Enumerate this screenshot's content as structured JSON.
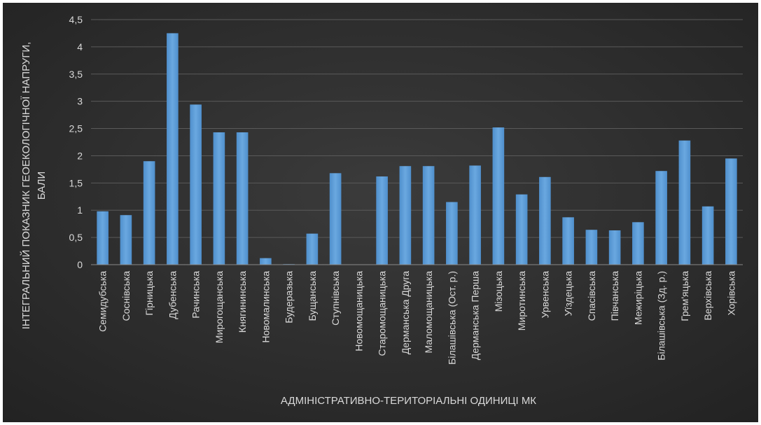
{
  "chart_data": {
    "type": "bar",
    "categories": [
      "Семидубська",
      "Соснівська",
      "Гірницька",
      "Дубенська",
      "Рачинська",
      "Мирогощанська",
      "Княгининська",
      "Новомалинська",
      "Будеразька",
      "Бущанська",
      "Ступнівська",
      "Новомощаницька",
      "Старомощаницька",
      "Дерманська Друга",
      "Маломощаницька",
      "Білашівська (Ост. р.)",
      "Дерманська Перша",
      "Мізоцька",
      "Миротинська",
      "Урвенська",
      "Уїздецька",
      "Спасівська",
      "Півчанська",
      "Межиріцька",
      "Білашівська (Зд. р.)",
      "Грем'яцька",
      "Верхівська",
      "Хорівська"
    ],
    "values": [
      0.98,
      0.91,
      1.9,
      4.25,
      2.94,
      2.43,
      2.43,
      0.12,
      0.01,
      0.57,
      1.68,
      0.0,
      1.62,
      1.81,
      1.81,
      1.15,
      1.82,
      2.52,
      1.29,
      1.61,
      0.87,
      0.64,
      0.63,
      0.78,
      1.72,
      2.28,
      1.07,
      1.95
    ],
    "yticks": [
      "0",
      "0,5",
      "1",
      "1,5",
      "2",
      "2,5",
      "3",
      "3,5",
      "4",
      "4,5"
    ],
    "ylim": [
      0,
      4.5
    ],
    "ylabel_line1": "ІНТЕГРАЛЬНИЙ ПОКАЗНИК ГЕОЕКОЛОГІЧНОЇ НАПРУГИ,",
    "ylabel_line2": "БАЛИ",
    "xlabel": "АДМІНІСТРАТИВНО-ТЕРИТОРІАЛЬНІ ОДИНИЦІ МК",
    "grid": true,
    "legend": "none",
    "colors": {
      "bar": "#5b9bd5",
      "bar_top": "#7fb3e3",
      "background_top": "#3a3a3a",
      "background_bottom": "#262626"
    }
  }
}
